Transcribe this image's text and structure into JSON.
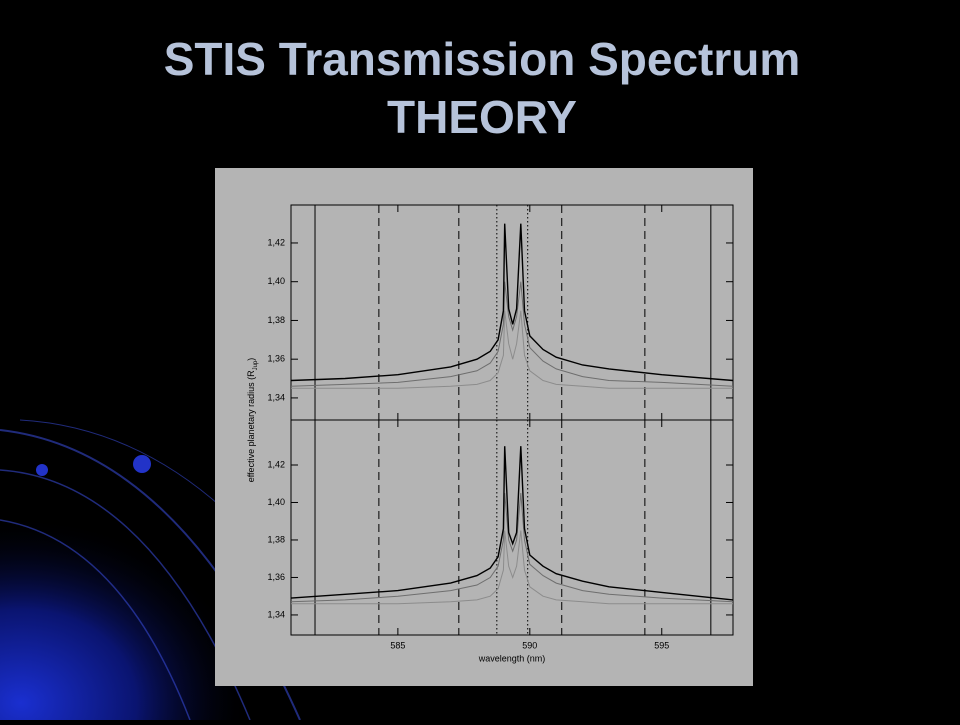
{
  "slide": {
    "title_lines": [
      "STIS Transmission Spectrum",
      "THEORY"
    ]
  },
  "chart_data": [
    {
      "type": "line",
      "ylabel": "effective planetary radius (R",
      "ylabel_sub": "Jup",
      "ylabel_end": ")",
      "xlim": [
        580.95,
        597.7
      ],
      "ylim": [
        1.3286,
        1.4396
      ],
      "xticks": [
        585,
        590,
        595
      ],
      "show_xtick_labels": false,
      "yticks": [
        {
          "value": 1.34,
          "label": "1,34"
        },
        {
          "value": 1.36,
          "label": "1,36"
        },
        {
          "value": 1.38,
          "label": "1,38"
        },
        {
          "value": 1.4,
          "label": "1,40"
        },
        {
          "value": 1.42,
          "label": "1,42"
        }
      ],
      "vlines": [
        {
          "x": 581.86,
          "style": "solid"
        },
        {
          "x": 584.28,
          "style": "dashed"
        },
        {
          "x": 587.31,
          "style": "dashed"
        },
        {
          "x": 588.75,
          "style": "dotted"
        },
        {
          "x": 589.92,
          "style": "dotted"
        },
        {
          "x": 591.21,
          "style": "dashed"
        },
        {
          "x": 594.36,
          "style": "dashed"
        },
        {
          "x": 596.86,
          "style": "solid"
        }
      ],
      "x": [
        580.95,
        583,
        585,
        587,
        588,
        588.5,
        588.8,
        589.0,
        589.05,
        589.2,
        589.35,
        589.5,
        589.66,
        589.8,
        590,
        590.5,
        591,
        592,
        593,
        595,
        597.7
      ],
      "series": [
        {
          "name": "",
          "color": "#000000",
          "values": [
            1.349,
            1.35,
            1.352,
            1.356,
            1.36,
            1.364,
            1.37,
            1.385,
            1.43,
            1.386,
            1.378,
            1.386,
            1.43,
            1.385,
            1.372,
            1.365,
            1.361,
            1.357,
            1.355,
            1.352,
            1.349
          ]
        },
        {
          "name": "",
          "color": "#6e6e6e",
          "values": [
            1.346,
            1.347,
            1.348,
            1.351,
            1.354,
            1.358,
            1.364,
            1.378,
            1.4,
            1.382,
            1.375,
            1.382,
            1.4,
            1.378,
            1.366,
            1.359,
            1.355,
            1.351,
            1.349,
            1.348,
            1.346
          ]
        },
        {
          "name": "",
          "color": "#8c8c8c",
          "values": [
            1.345,
            1.345,
            1.345,
            1.346,
            1.347,
            1.349,
            1.353,
            1.362,
            1.385,
            1.368,
            1.36,
            1.368,
            1.385,
            1.362,
            1.354,
            1.349,
            1.347,
            1.346,
            1.345,
            1.345,
            1.345
          ]
        }
      ]
    },
    {
      "type": "line",
      "xlabel": "wavelength (nm)",
      "xlim": [
        580.95,
        597.7
      ],
      "ylim": [
        1.3293,
        1.444
      ],
      "xticks": [
        585,
        590,
        595
      ],
      "show_xtick_labels": true,
      "yticks": [
        {
          "value": 1.34,
          "label": "1,34"
        },
        {
          "value": 1.36,
          "label": "1,36"
        },
        {
          "value": 1.38,
          "label": "1,38"
        },
        {
          "value": 1.4,
          "label": "1,40"
        },
        {
          "value": 1.42,
          "label": "1,42"
        }
      ],
      "vlines": [
        {
          "x": 581.86,
          "style": "solid"
        },
        {
          "x": 584.28,
          "style": "dashed"
        },
        {
          "x": 587.31,
          "style": "dashed"
        },
        {
          "x": 588.75,
          "style": "dotted"
        },
        {
          "x": 589.92,
          "style": "dotted"
        },
        {
          "x": 591.21,
          "style": "dashed"
        },
        {
          "x": 594.36,
          "style": "dashed"
        },
        {
          "x": 596.86,
          "style": "solid"
        }
      ],
      "x": [
        580.95,
        583,
        585,
        587,
        588,
        588.5,
        588.8,
        589.0,
        589.05,
        589.2,
        589.35,
        589.5,
        589.66,
        589.8,
        590,
        590.5,
        591,
        592,
        593,
        595,
        597.7
      ],
      "series": [
        {
          "name": "",
          "color": "#000000",
          "values": [
            1.349,
            1.351,
            1.353,
            1.357,
            1.361,
            1.365,
            1.371,
            1.386,
            1.43,
            1.384,
            1.378,
            1.384,
            1.43,
            1.386,
            1.372,
            1.366,
            1.362,
            1.358,
            1.355,
            1.352,
            1.348
          ]
        },
        {
          "name": "",
          "color": "#6e6e6e",
          "values": [
            1.347,
            1.348,
            1.35,
            1.353,
            1.356,
            1.36,
            1.366,
            1.38,
            1.405,
            1.38,
            1.374,
            1.38,
            1.405,
            1.38,
            1.367,
            1.361,
            1.357,
            1.353,
            1.351,
            1.349,
            1.347
          ]
        },
        {
          "name": "",
          "color": "#8c8c8c",
          "values": [
            1.346,
            1.346,
            1.346,
            1.347,
            1.348,
            1.35,
            1.354,
            1.364,
            1.385,
            1.366,
            1.36,
            1.366,
            1.385,
            1.364,
            1.355,
            1.35,
            1.348,
            1.347,
            1.346,
            1.346,
            1.346
          ]
        }
      ]
    }
  ]
}
